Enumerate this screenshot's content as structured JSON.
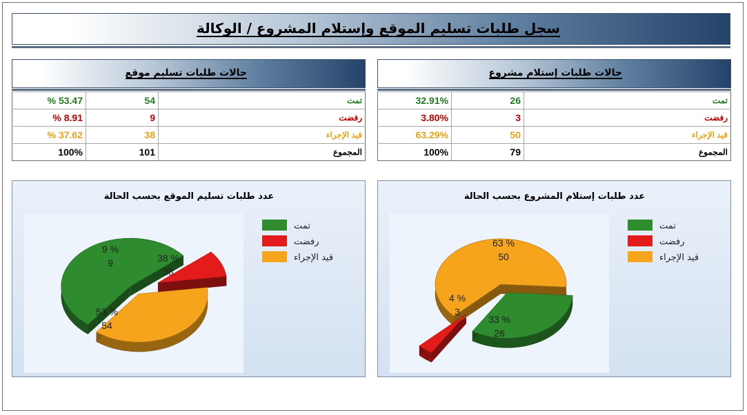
{
  "title": "سجل طلبات تسليم الموقع وإستلام المشروع / الوكالة",
  "colors": {
    "done": "#2e8b2e",
    "rejected": "#e31b1b",
    "pending": "#f5a41c"
  },
  "project_table": {
    "title": "حالات طلبات إستلام مشروع",
    "rows": [
      {
        "label": "تمت",
        "count": "26",
        "percent": "32.91%",
        "color": "#1f7a1f"
      },
      {
        "label": "رفضت",
        "count": "3",
        "percent": "3.80%",
        "color": "#c00000"
      },
      {
        "label": "قيد الإجراء",
        "count": "50",
        "percent": "63.29%",
        "color": "#e6a117"
      },
      {
        "label": "المجموع",
        "count": "79",
        "percent": "100%",
        "color": "#000000"
      }
    ]
  },
  "site_table": {
    "title": "حالات طلبات تسليم موقع",
    "rows": [
      {
        "label": "تمت",
        "count": "54",
        "percent": "% 53.47",
        "color": "#1f7a1f"
      },
      {
        "label": "رفضت",
        "count": "9",
        "percent": "% 8.91",
        "color": "#c00000"
      },
      {
        "label": "قيد الإجراء",
        "count": "38",
        "percent": "% 37.62",
        "color": "#e6a117"
      },
      {
        "label": "المجموع",
        "count": "101",
        "percent": "100%",
        "color": "#000000"
      }
    ]
  },
  "chart_data": [
    {
      "type": "pie",
      "title": "عدد طلبات إستلام المشروع بحسب الحالة",
      "legend_position": "right",
      "categories": [
        "تمت",
        "رفضت",
        "قيد الإجراء"
      ],
      "values": [
        26,
        3,
        50
      ],
      "percent_labels": [
        "33 %",
        "4 %",
        "63 %"
      ],
      "value_labels": [
        "26",
        "3",
        "50"
      ],
      "colors": [
        "#2e8b2e",
        "#e31b1b",
        "#f5a41c"
      ]
    },
    {
      "type": "pie",
      "title": "عدد طلبات تسليم الموقع بحسب الحالة",
      "legend_position": "right",
      "categories": [
        "تمت",
        "رفضت",
        "قيد الإجراء"
      ],
      "values": [
        54,
        9,
        38
      ],
      "percent_labels": [
        "53 %",
        "9 %",
        "38 %"
      ],
      "value_labels": [
        "54",
        "9",
        "38"
      ],
      "colors": [
        "#2e8b2e",
        "#e31b1b",
        "#f5a41c"
      ]
    }
  ]
}
